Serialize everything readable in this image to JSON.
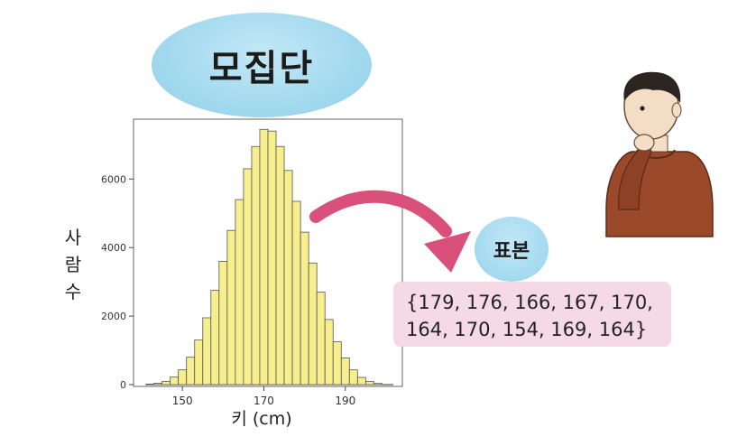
{
  "population_label": "모집단",
  "sample_label": "표본",
  "sample_values": {
    "line1": "{179, 176, 166, 167, 170,",
    "line2": "164, 170, 154, 169, 164}"
  },
  "colors": {
    "bar_fill": "#f7ee8e",
    "bar_stroke": "#555555",
    "bubble": "#a3d9ef",
    "sample_box": "#f6d9e6",
    "arrow": "#d9507a",
    "shirt": "#9a4a2a"
  },
  "icons": [
    "curved-arrow-icon",
    "thinking-person-icon"
  ],
  "chart_data": {
    "type": "bar",
    "title": "",
    "xlabel": "키 (cm)",
    "ylabel": "사람 수",
    "xticks": [
      150,
      170,
      190
    ],
    "yticks": [
      0,
      2000,
      4000,
      6000
    ],
    "xlim": [
      138,
      204
    ],
    "ylim": [
      0,
      7800
    ],
    "bin_width": 2,
    "x": [
      142,
      144,
      146,
      148,
      150,
      152,
      154,
      156,
      158,
      160,
      162,
      164,
      166,
      168,
      170,
      172,
      174,
      176,
      178,
      180,
      182,
      184,
      186,
      188,
      190,
      192,
      194,
      196,
      198
    ],
    "values": [
      15,
      40,
      90,
      220,
      430,
      800,
      1300,
      1950,
      2750,
      3600,
      4500,
      5400,
      6300,
      6950,
      7450,
      7400,
      6950,
      6250,
      5350,
      4450,
      3550,
      2700,
      1900,
      1250,
      780,
      430,
      210,
      90,
      35
    ]
  }
}
